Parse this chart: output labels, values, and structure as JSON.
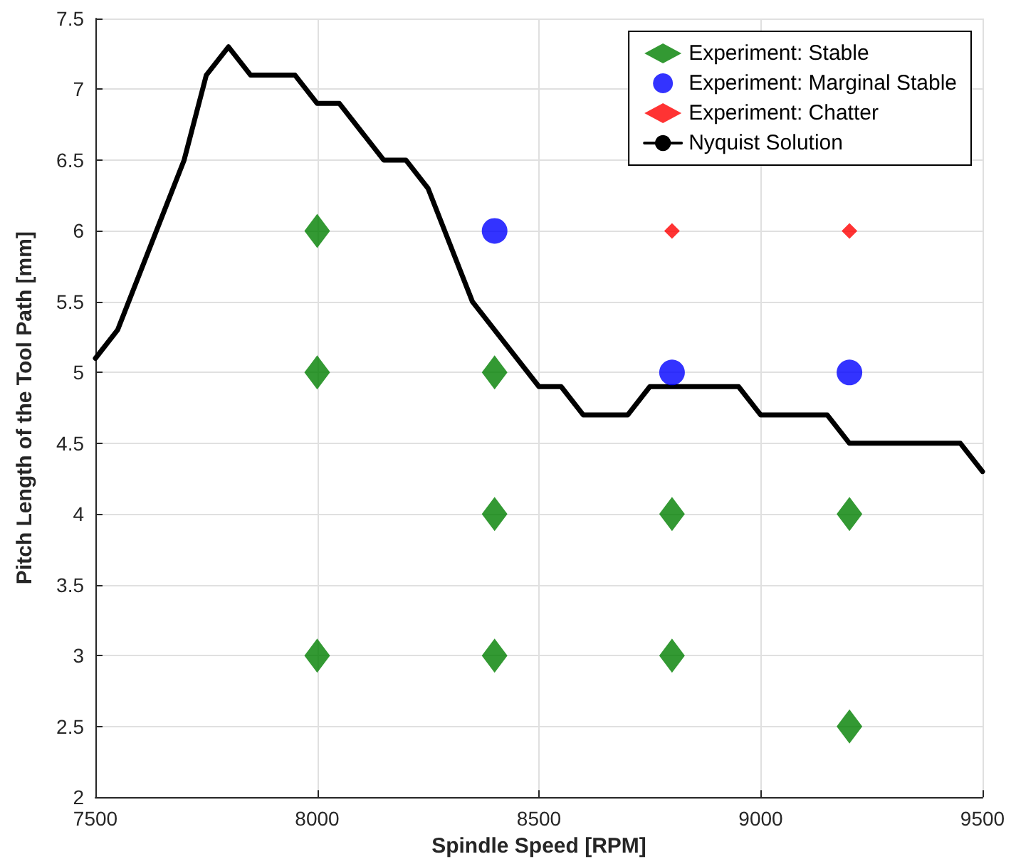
{
  "chart_data": {
    "type": "scatter",
    "xlabel": "Spindle Speed [RPM]",
    "ylabel": "Pitch Length of the Tool Path [mm]",
    "xlim": [
      7500,
      9500
    ],
    "xticks": [
      7500,
      8000,
      8500,
      9000,
      9500
    ],
    "ylim": [
      2,
      7.5
    ],
    "yticks": [
      2,
      2.5,
      3,
      3.5,
      4,
      4.5,
      5,
      5.5,
      6,
      6.5,
      7,
      7.5
    ],
    "grid": true,
    "legend": "top right",
    "series": [
      {
        "name": "Experiment: Stable",
        "color": "#008000",
        "marker": "diamond",
        "x": [
          8000,
          8000,
          8000,
          8400,
          8400,
          8400,
          8800,
          8800,
          9200,
          9200
        ],
        "values": [
          6,
          5,
          3,
          5,
          4,
          3,
          4,
          3,
          4,
          2.5
        ]
      },
      {
        "name": "Experiment: Marginal Stable",
        "color": "#0000ff",
        "marker": "circle",
        "x": [
          8400,
          8800,
          9200
        ],
        "values": [
          6,
          5,
          5
        ]
      },
      {
        "name": "Experiment: Chatter",
        "color": "#ff0000",
        "marker": "diamond",
        "x": [
          8800,
          9200
        ],
        "values": [
          6,
          6
        ]
      },
      {
        "name": "Nyquist Solution",
        "type": "line",
        "color": "#000000",
        "marker": "none",
        "line_style": "solid",
        "x": [
          7500,
          7550,
          7700,
          7750,
          7800,
          7850,
          7950,
          8000,
          8050,
          8150,
          8200,
          8250,
          8350,
          8500,
          8550,
          8600,
          8700,
          8750,
          8950,
          9000,
          9150,
          9200,
          9450,
          9500
        ],
        "values": [
          5.1,
          5.3,
          6.5,
          7.1,
          7.3,
          7.1,
          7.1,
          6.9,
          6.9,
          6.5,
          6.5,
          6.3,
          5.5,
          4.9,
          4.9,
          4.7,
          4.7,
          4.9,
          4.9,
          4.7,
          4.7,
          4.5,
          4.5,
          4.3
        ]
      }
    ]
  }
}
